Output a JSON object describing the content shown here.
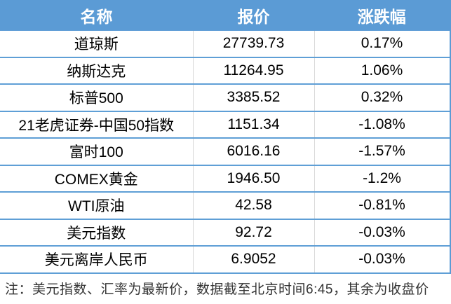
{
  "chart_data": {
    "type": "table",
    "columns": [
      "名称",
      "报价",
      "涨跌幅"
    ],
    "rows": [
      [
        "道琼斯",
        "27739.73",
        "0.17%"
      ],
      [
        "纳斯达克",
        "11264.95",
        "1.06%"
      ],
      [
        "标普500",
        "3385.52",
        "0.32%"
      ],
      [
        "21老虎证券-中国50指数",
        "1151.34",
        "-1.08%"
      ],
      [
        "富时100",
        "6016.16",
        "-1.57%"
      ],
      [
        "COMEX黄金",
        "1946.50",
        "-1.2%"
      ],
      [
        "WTI原油",
        "42.58",
        "-0.81%"
      ],
      [
        "美元指数",
        "92.72",
        "-0.03%"
      ],
      [
        "美元离岸人民币",
        "6.9052",
        "-0.03%"
      ]
    ],
    "note": "注：美元指数、汇率为最新价，数据截至北京时间6:45，其余为收盘价"
  },
  "colors": {
    "header_bg": "#5b9bd5",
    "header_text": "#ffffff",
    "row_border": "#5f9fd6",
    "right_border": "#5b9bd5",
    "column_divider": "#d9d9d9",
    "cell_text": "#000000",
    "footnote_text": "#333333"
  }
}
